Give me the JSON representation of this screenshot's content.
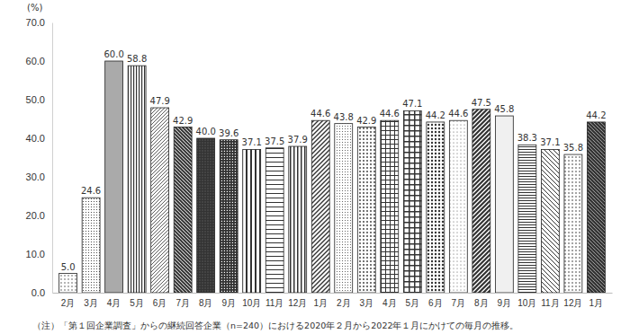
{
  "chart_data": {
    "type": "bar",
    "ylabel": "(%)",
    "note": "（注）「第１回企業調査」からの継続回答企業（n=240）における2020年２月から2022年１月にかけての毎月の推移。",
    "categories": [
      "2月",
      "3月",
      "4月",
      "5月",
      "6月",
      "7月",
      "8月",
      "9月",
      "10月",
      "11月",
      "12月",
      "1月",
      "2月",
      "3月",
      "4月",
      "5月",
      "6月",
      "7月",
      "8月",
      "9月",
      "10月",
      "11月",
      "12月",
      "1月"
    ],
    "values": [
      5.0,
      24.6,
      60.0,
      58.8,
      47.9,
      42.9,
      40.0,
      39.6,
      37.1,
      37.5,
      37.9,
      44.6,
      43.8,
      42.9,
      44.6,
      47.1,
      44.2,
      44.6,
      47.5,
      45.8,
      38.3,
      37.1,
      35.8,
      44.2
    ],
    "value_labels": [
      "5.0",
      "24.6",
      "60.0",
      "58.8",
      "47.9",
      "42.9",
      "40.0",
      "39.6",
      "37.1",
      "37.5",
      "37.9",
      "44.6",
      "43.8",
      "42.9",
      "44.6",
      "47.1",
      "44.2",
      "44.6",
      "47.5",
      "45.8",
      "38.3",
      "37.1",
      "35.8",
      "44.2"
    ],
    "data_labels": true,
    "color": "#333333",
    "grid": false,
    "ylim": [
      0,
      70
    ],
    "yticks": [
      {
        "value": 0,
        "label": "0.0"
      },
      {
        "value": 10,
        "label": "10.0"
      },
      {
        "value": 20,
        "label": "20.0"
      },
      {
        "value": 30,
        "label": "30.0"
      },
      {
        "value": 40,
        "label": "40.0"
      },
      {
        "value": 50,
        "label": "50.0"
      },
      {
        "value": 60,
        "label": "60.0"
      },
      {
        "value": 70,
        "label": "70.0"
      }
    ]
  }
}
